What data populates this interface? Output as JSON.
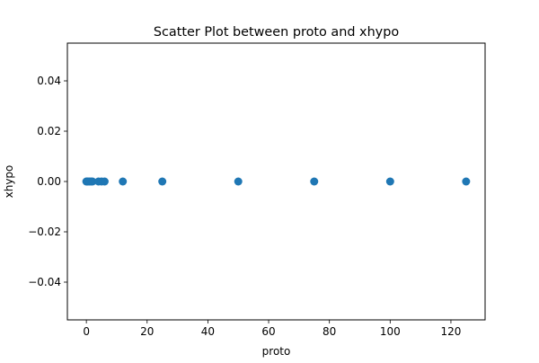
{
  "chart_data": {
    "type": "scatter",
    "title": "Scatter Plot between proto and xhypo",
    "xlabel": "proto",
    "ylabel": "xhypo",
    "xlim": [
      -6.25,
      131.25
    ],
    "ylim": [
      -0.055,
      0.055
    ],
    "x_ticks": [
      0,
      20,
      40,
      60,
      80,
      100,
      120
    ],
    "x_tick_labels": [
      "0",
      "20",
      "40",
      "60",
      "80",
      "100",
      "120"
    ],
    "y_ticks": [
      -0.04,
      -0.02,
      0.0,
      0.02,
      0.04
    ],
    "y_tick_labels": [
      "−0.04",
      "−0.02",
      "0.00",
      "0.02",
      "0.04"
    ],
    "grid": false,
    "marker_color": "#1f77b4",
    "x": [
      0,
      0.2,
      0.5,
      1,
      1.5,
      2,
      4,
      5,
      6,
      12,
      25,
      50,
      75,
      100,
      125
    ],
    "y": [
      0,
      0,
      0,
      0,
      0,
      0,
      0,
      0,
      0,
      0,
      0,
      0,
      0,
      0,
      0
    ]
  }
}
